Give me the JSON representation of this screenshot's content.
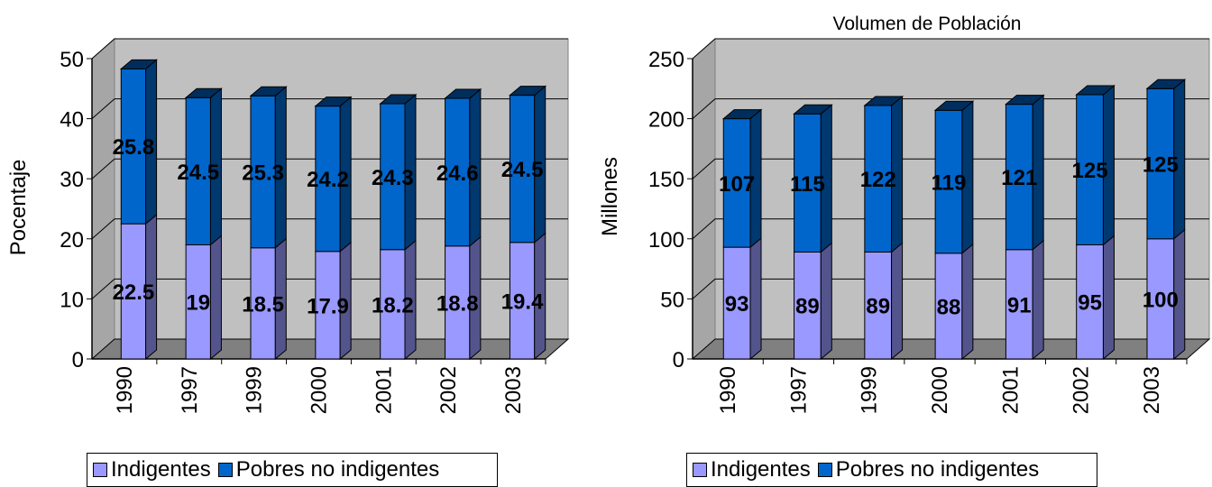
{
  "chart_data": [
    {
      "type": "bar",
      "stacked": true,
      "three_d": true,
      "title": "",
      "xlabel": "",
      "ylabel": "Pocentaje",
      "ylim": [
        0,
        50
      ],
      "yticks": [
        "0",
        "10",
        "20",
        "30",
        "40",
        "50"
      ],
      "categories": [
        "1990",
        "1997",
        "1999",
        "2000",
        "2001",
        "2002",
        "2003"
      ],
      "series": [
        {
          "name": "Indigentes",
          "color": "#9999ff",
          "values": [
            22.5,
            19,
            18.5,
            17.9,
            18.2,
            18.8,
            19.4
          ]
        },
        {
          "name": "Pobres no indigentes",
          "color": "#0066cc",
          "values": [
            25.8,
            24.5,
            25.3,
            24.2,
            24.3,
            24.6,
            24.5
          ]
        }
      ],
      "data_labels": [
        [
          "22.5",
          "19",
          "18.5",
          "17.9",
          "18.2",
          "18.8",
          "19.4"
        ],
        [
          "25.8",
          "24.5",
          "25.3",
          "24.2",
          "24.3",
          "24.6",
          "24.5"
        ]
      ],
      "legend_position": "bottom",
      "grid": true
    },
    {
      "type": "bar",
      "stacked": true,
      "three_d": true,
      "title": "Volumen de Población",
      "xlabel": "",
      "ylabel": "Millones",
      "ylim": [
        0,
        250
      ],
      "yticks": [
        "0",
        "50",
        "100",
        "150",
        "200",
        "250"
      ],
      "categories": [
        "1990",
        "1997",
        "1999",
        "2000",
        "2001",
        "2002",
        "2003"
      ],
      "series": [
        {
          "name": "Indigentes",
          "color": "#9999ff",
          "values": [
            93,
            89,
            89,
            88,
            91,
            95,
            100
          ]
        },
        {
          "name": "Pobres no indigentes",
          "color": "#0066cc",
          "values": [
            107,
            115,
            122,
            119,
            121,
            125,
            125
          ]
        }
      ],
      "data_labels": [
        [
          "93",
          "89",
          "89",
          "88",
          "91",
          "95",
          "100"
        ],
        [
          "107",
          "115",
          "122",
          "119",
          "121",
          "125",
          "125"
        ]
      ],
      "legend_position": "bottom",
      "grid": true
    }
  ],
  "legend": {
    "left": {
      "item1": "Indigentes",
      "item2": "Pobres no indigentes"
    },
    "right": {
      "item1": "Indigentes",
      "item2": "Pobres no indigentes"
    }
  },
  "colors": {
    "indigentes": "#9999ff",
    "pobres": "#0066cc",
    "wall": "#c0c0c0",
    "floor": "#808080"
  }
}
